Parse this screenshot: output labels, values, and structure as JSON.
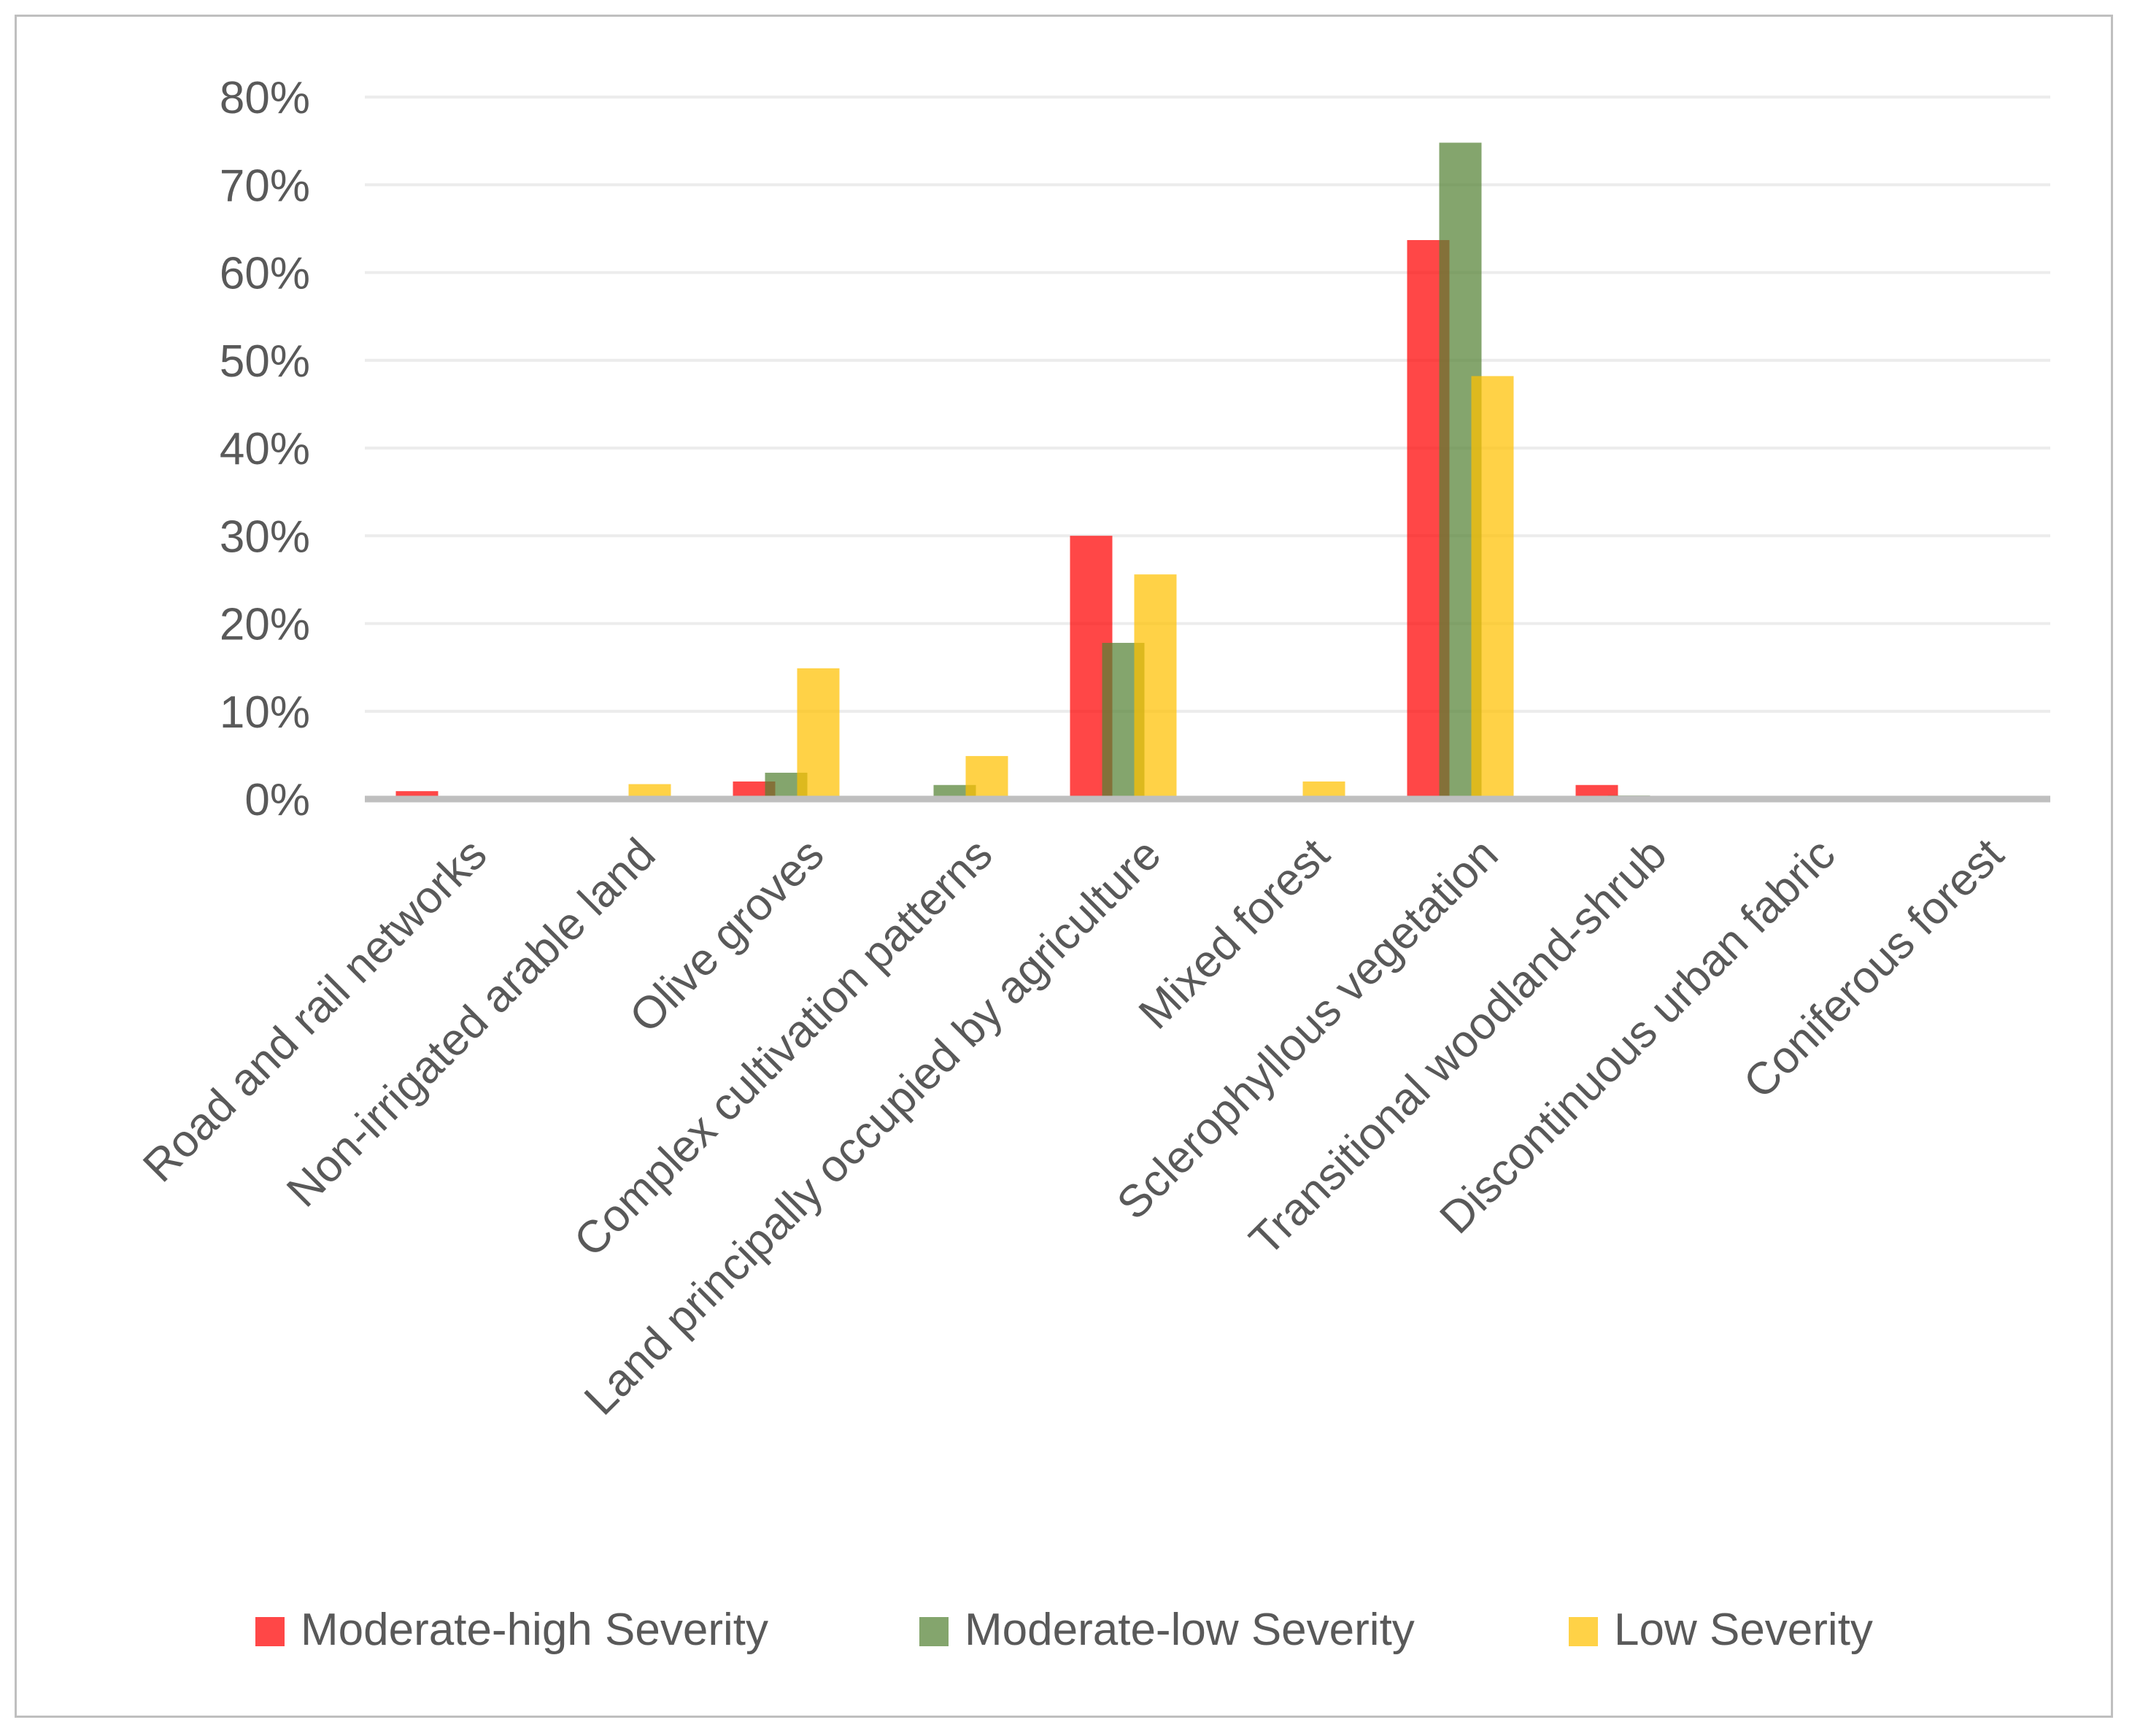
{
  "chart_data": {
    "type": "bar",
    "title": "",
    "xlabel": "",
    "ylabel": "",
    "ylim": [
      0,
      80
    ],
    "yticks": [
      "0%",
      "10%",
      "20%",
      "30%",
      "40%",
      "50%",
      "60%",
      "70%",
      "80%"
    ],
    "grid": true,
    "legend_position": "bottom",
    "categories": [
      "Road and rail networks",
      "Non-irrigated arable land",
      "Olive groves",
      "Complex cultivation patterns",
      "Land principally occupied by agriculture",
      "Mixed forest",
      "Sclerophyllous vegetation",
      "Transitional woodland-shrub",
      "Discontinuous urban fabric",
      "Coniferous forest"
    ],
    "series": [
      {
        "name": "Moderate-high Severity",
        "color": "#ff0000",
        "values": [
          0.9,
          0,
          2.0,
          0,
          30.0,
          0,
          63.7,
          1.6,
          0,
          0
        ]
      },
      {
        "name": "Moderate-low Severity",
        "color": "#548235",
        "values": [
          0,
          0,
          3.0,
          1.6,
          17.8,
          0,
          74.8,
          0.4,
          0,
          0
        ]
      },
      {
        "name": "Low Severity",
        "color": "#ffc000",
        "values": [
          0,
          1.7,
          14.9,
          4.9,
          25.6,
          2.0,
          48.2,
          0.3,
          0,
          0.3
        ]
      }
    ]
  }
}
